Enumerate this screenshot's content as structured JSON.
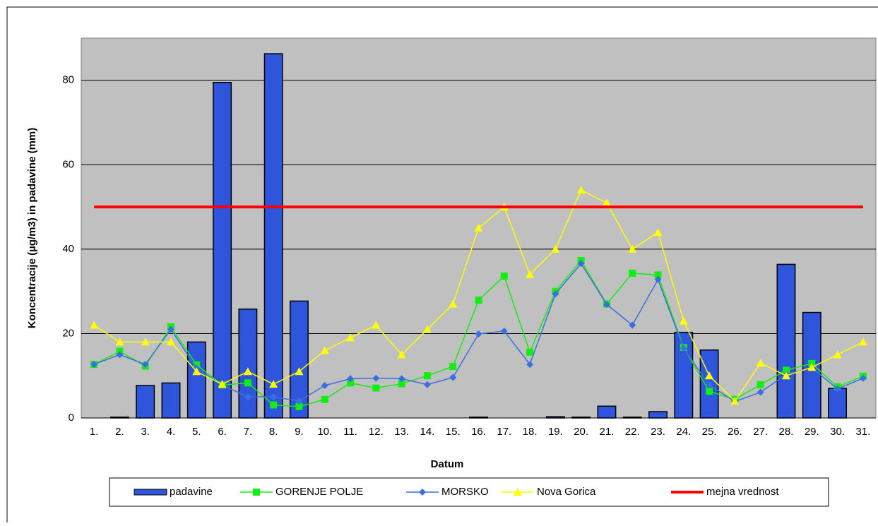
{
  "chart_data": {
    "type": "bar-line",
    "ylabel": "Koncentracije  (µg/m3) in padavine (mm)",
    "xlabel": "Datum",
    "categories": [
      "1.",
      "2.",
      "3.",
      "4.",
      "5.",
      "6.",
      "7.",
      "8.",
      "9.",
      "10.",
      "11.",
      "12.",
      "13.",
      "14.",
      "15.",
      "16.",
      "17.",
      "18.",
      "19.",
      "20.",
      "21.",
      "22.",
      "23.",
      "24.",
      "25.",
      "26.",
      "27.",
      "28.",
      "29.",
      "30.",
      "31."
    ],
    "ylim": [
      0,
      90
    ],
    "yticks": [
      0,
      20,
      40,
      60,
      80
    ],
    "grid": true,
    "series": [
      {
        "name": "padavine",
        "type": "bar",
        "color": "#2f55dd",
        "values": [
          0,
          0.2,
          7.7,
          8.3,
          18,
          79.5,
          25.8,
          86.3,
          27.7,
          0,
          0,
          0,
          0,
          0,
          0,
          0.2,
          0,
          0,
          0.3,
          0.2,
          2.8,
          0.2,
          1.5,
          20.3,
          16.1,
          0,
          0,
          36.4,
          25,
          7,
          0
        ]
      },
      {
        "name": "GORENJE POLJE",
        "type": "line",
        "marker": "square",
        "color": "#11ee11",
        "values": [
          12.7,
          15.8,
          12.3,
          21.6,
          12.6,
          7.8,
          8.3,
          3.1,
          2.7,
          4.4,
          8.3,
          7.1,
          8.1,
          10,
          12.2,
          27.9,
          33.6,
          15.6,
          30,
          37.3,
          27,
          34.3,
          33.9,
          16.7,
          6.3,
          4.4,
          7.9,
          11.3,
          12.9,
          7.4,
          9.9
        ]
      },
      {
        "name": "MORSKO",
        "type": "line",
        "marker": "diamond",
        "color": "#3a6fe0",
        "values": [
          12.7,
          15,
          12.7,
          21,
          11.8,
          7.8,
          5,
          5,
          4,
          7.7,
          9.3,
          9.4,
          9.3,
          7.9,
          9.6,
          19.9,
          20.6,
          12.7,
          29.4,
          36.6,
          26.9,
          22,
          32.8,
          16.5,
          7.8,
          3.9,
          6.1,
          10.3,
          11.9,
          6.9,
          9.4
        ]
      },
      {
        "name": "Nova Gorica",
        "type": "line",
        "marker": "triangle",
        "color": "#ffff00",
        "values": [
          22,
          18,
          18,
          18,
          11,
          8,
          11,
          8,
          11,
          16,
          19,
          22,
          15,
          21,
          27,
          45,
          50,
          34,
          40,
          54,
          51,
          40,
          44,
          23,
          10,
          4,
          13,
          10,
          12,
          15,
          18
        ]
      },
      {
        "name": "mejna vrednost",
        "type": "line",
        "marker": "none",
        "color": "#ff0000",
        "width": 4,
        "values": [
          50,
          50,
          50,
          50,
          50,
          50,
          50,
          50,
          50,
          50,
          50,
          50,
          50,
          50,
          50,
          50,
          50,
          50,
          50,
          50,
          50,
          50,
          50,
          50,
          50,
          50,
          50,
          50,
          50,
          50,
          50
        ]
      }
    ]
  }
}
